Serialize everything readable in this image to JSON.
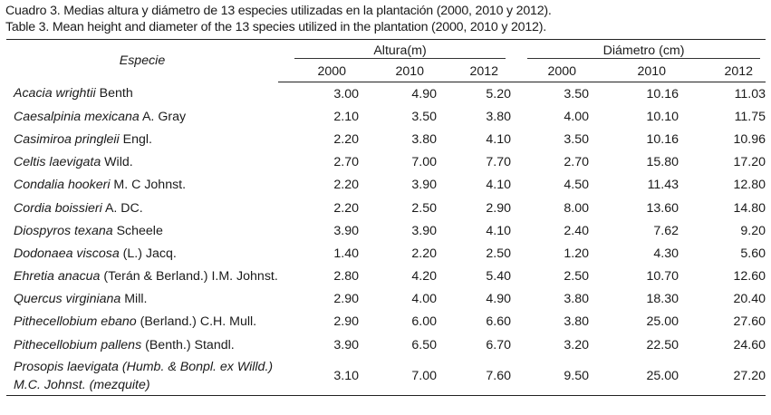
{
  "caption": {
    "es": "Cuadro 3. Medias altura y diámetro de 13 especies utilizadas en la plantación (2000, 2010 y 2012).",
    "en": "Table 3. Mean height and diameter of the 13 species utilized in the plantation (2000, 2010 y 2012)."
  },
  "table": {
    "species_header": "Especie",
    "height_header": "Altura(m)",
    "diameter_header": "Diámetro (cm)",
    "years": [
      "2000",
      "2010",
      "2012"
    ],
    "rows": [
      {
        "sci": "Acacia wrightii",
        "auth": " Benth",
        "h": [
          "3.00",
          "4.90",
          "5.20"
        ],
        "d": [
          "3.50",
          "10.16",
          "11.03"
        ]
      },
      {
        "sci": "Caesalpinia mexicana",
        "auth": " A. Gray",
        "h": [
          "2.10",
          "3.50",
          "3.80"
        ],
        "d": [
          "4.00",
          "10.10",
          "11.75"
        ]
      },
      {
        "sci": "Casimiroa pringleii",
        "auth": " Engl.",
        "h": [
          "2.20",
          "3.80",
          "4.10"
        ],
        "d": [
          "3.50",
          "10.16",
          "10.96"
        ]
      },
      {
        "sci": "Celtis laevigata",
        "auth": " Wild.",
        "h": [
          "2.70",
          "7.00",
          "7.70"
        ],
        "d": [
          "2.70",
          "15.80",
          "17.20"
        ]
      },
      {
        "sci": "Condalia hookeri",
        "auth": " M. C Johnst.",
        "h": [
          "2.20",
          "3.90",
          "4.10"
        ],
        "d": [
          "4.50",
          "11.43",
          "12.80"
        ]
      },
      {
        "sci": "Cordia boissieri",
        "auth": " A. DC.",
        "h": [
          "2.20",
          "2.50",
          "2.90"
        ],
        "d": [
          "8.00",
          "13.60",
          "14.80"
        ]
      },
      {
        "sci": "Diospyros texana",
        "auth": " Scheele",
        "h": [
          "3.90",
          "3.90",
          "4.10"
        ],
        "d": [
          "2.40",
          "7.62",
          "9.20"
        ]
      },
      {
        "sci": "Dodonaea viscosa",
        "auth": " (L.) Jacq.",
        "h": [
          "1.40",
          "2.20",
          "2.50"
        ],
        "d": [
          "1.20",
          "4.30",
          "5.60"
        ]
      },
      {
        "sci": "Ehretia anacua",
        "auth": " (Terán & Berland.) I.M. Johnst.",
        "h": [
          "2.80",
          "4.20",
          "5.40"
        ],
        "d": [
          "2.50",
          "10.70",
          "12.60"
        ]
      },
      {
        "sci": "Quercus virginiana",
        "auth": " Mill.",
        "h": [
          "2.90",
          "4.00",
          "4.90"
        ],
        "d": [
          "3.80",
          "18.30",
          "20.40"
        ]
      },
      {
        "sci": "Pithecellobium ebano",
        "auth": " (Berland.) C.H. Mull.",
        "h": [
          "2.90",
          "6.00",
          "6.60"
        ],
        "d": [
          "3.80",
          "25.00",
          "27.60"
        ]
      },
      {
        "sci": "Pithecellobium pallens",
        "auth": " (Benth.) Standl.",
        "h": [
          "3.90",
          "6.50",
          "6.70"
        ],
        "d": [
          "3.20",
          "22.50",
          "24.60"
        ]
      },
      {
        "sci": "Prosopis laevigata (Humb. & Bonpl. ex Willd.) M.C. Johnst. (mezquite)",
        "auth": "",
        "h": [
          "3.10",
          "7.00",
          "7.60"
        ],
        "d": [
          "9.50",
          "25.00",
          "27.20"
        ]
      }
    ]
  }
}
